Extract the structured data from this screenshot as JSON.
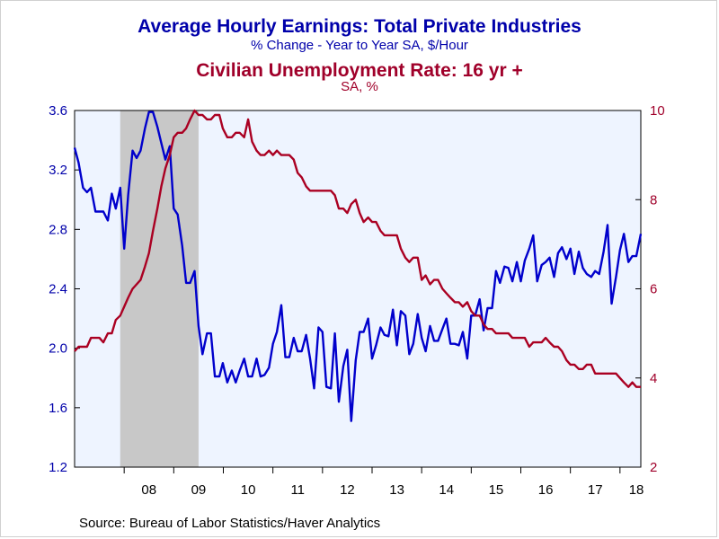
{
  "chart_data": {
    "type": "line",
    "title": "Average Hourly Earnings: Total Private Industries",
    "subtitle": "% Change - Year to Year     SA, $/Hour",
    "title2": "Civilian Unemployment Rate: 16 yr +",
    "subtitle2": "SA, %",
    "source": "Source:  Bureau of Labor Statistics/Haver Analytics",
    "x_unit": "year",
    "xlim": [
      2007.0,
      2018.42
    ],
    "x_tick_labels": [
      "08",
      "09",
      "10",
      "11",
      "12",
      "13",
      "14",
      "15",
      "16",
      "17",
      "18"
    ],
    "x_tick_positions": [
      2008.5,
      2009.5,
      2010.5,
      2011.5,
      2012.5,
      2013.5,
      2014.5,
      2015.5,
      2016.5,
      2017.5,
      2018.33
    ],
    "left_axis": {
      "ylim": [
        1.2,
        3.6
      ],
      "ticks": [
        "1.2",
        "1.6",
        "2.0",
        "2.4",
        "2.8",
        "3.2",
        "3.6"
      ],
      "color": "#0000aa"
    },
    "right_axis": {
      "ylim": [
        2,
        10
      ],
      "ticks": [
        "2",
        "4",
        "6",
        "8",
        "10"
      ],
      "color": "#a0002a"
    },
    "recession": {
      "start": 2007.92,
      "end": 2009.5,
      "color": "#c8c8c8"
    },
    "plot_background": "#eef4ff",
    "series": [
      {
        "axis": "left",
        "color": "#0000cc",
        "values": [
          [
            2007.0,
            3.35
          ],
          [
            2007.08,
            3.25
          ],
          [
            2007.17,
            3.08
          ],
          [
            2007.25,
            3.05
          ],
          [
            2007.33,
            3.08
          ],
          [
            2007.42,
            2.92
          ],
          [
            2007.5,
            2.92
          ],
          [
            2007.58,
            2.92
          ],
          [
            2007.67,
            2.86
          ],
          [
            2007.75,
            3.04
          ],
          [
            2007.83,
            2.94
          ],
          [
            2007.92,
            3.08
          ],
          [
            2008.0,
            2.67
          ],
          [
            2008.08,
            3.03
          ],
          [
            2008.17,
            3.33
          ],
          [
            2008.25,
            3.28
          ],
          [
            2008.33,
            3.33
          ],
          [
            2008.42,
            3.48
          ],
          [
            2008.5,
            3.59
          ],
          [
            2008.58,
            3.59
          ],
          [
            2008.67,
            3.49
          ],
          [
            2008.75,
            3.38
          ],
          [
            2008.83,
            3.27
          ],
          [
            2008.92,
            3.36
          ],
          [
            2009.0,
            2.94
          ],
          [
            2009.08,
            2.9
          ],
          [
            2009.17,
            2.69
          ],
          [
            2009.25,
            2.44
          ],
          [
            2009.33,
            2.44
          ],
          [
            2009.42,
            2.52
          ],
          [
            2009.5,
            2.15
          ],
          [
            2009.58,
            1.96
          ],
          [
            2009.67,
            2.1
          ],
          [
            2009.75,
            2.1
          ],
          [
            2009.83,
            1.81
          ],
          [
            2009.92,
            1.81
          ],
          [
            2009.99,
            1.9
          ],
          [
            2010.08,
            1.77
          ],
          [
            2010.17,
            1.85
          ],
          [
            2010.25,
            1.77
          ],
          [
            2010.33,
            1.85
          ],
          [
            2010.42,
            1.93
          ],
          [
            2010.5,
            1.81
          ],
          [
            2010.58,
            1.81
          ],
          [
            2010.67,
            1.93
          ],
          [
            2010.75,
            1.81
          ],
          [
            2010.83,
            1.82
          ],
          [
            2010.92,
            1.87
          ],
          [
            2011.0,
            2.03
          ],
          [
            2011.08,
            2.11
          ],
          [
            2011.17,
            2.29
          ],
          [
            2011.25,
            1.94
          ],
          [
            2011.33,
            1.94
          ],
          [
            2011.42,
            2.07
          ],
          [
            2011.5,
            1.98
          ],
          [
            2011.58,
            1.98
          ],
          [
            2011.67,
            2.09
          ],
          [
            2011.75,
            1.93
          ],
          [
            2011.83,
            1.73
          ],
          [
            2011.92,
            2.14
          ],
          [
            2012.0,
            2.11
          ],
          [
            2012.08,
            1.74
          ],
          [
            2012.17,
            1.73
          ],
          [
            2012.25,
            2.1
          ],
          [
            2012.33,
            1.64
          ],
          [
            2012.42,
            1.88
          ],
          [
            2012.5,
            1.99
          ],
          [
            2012.58,
            1.51
          ],
          [
            2012.67,
            1.92
          ],
          [
            2012.75,
            2.11
          ],
          [
            2012.83,
            2.11
          ],
          [
            2012.92,
            2.2
          ],
          [
            2013.0,
            1.93
          ],
          [
            2013.08,
            2.02
          ],
          [
            2013.17,
            2.14
          ],
          [
            2013.25,
            2.09
          ],
          [
            2013.33,
            2.08
          ],
          [
            2013.42,
            2.26
          ],
          [
            2013.5,
            2.02
          ],
          [
            2013.58,
            2.25
          ],
          [
            2013.67,
            2.22
          ],
          [
            2013.75,
            1.96
          ],
          [
            2013.83,
            2.03
          ],
          [
            2013.92,
            2.23
          ],
          [
            2014.0,
            2.07
          ],
          [
            2014.08,
            1.98
          ],
          [
            2014.17,
            2.15
          ],
          [
            2014.25,
            2.05
          ],
          [
            2014.33,
            2.05
          ],
          [
            2014.42,
            2.13
          ],
          [
            2014.5,
            2.2
          ],
          [
            2014.58,
            2.03
          ],
          [
            2014.67,
            2.03
          ],
          [
            2014.75,
            2.02
          ],
          [
            2014.83,
            2.11
          ],
          [
            2014.92,
            1.93
          ],
          [
            2015.0,
            2.22
          ],
          [
            2015.08,
            2.22
          ],
          [
            2015.17,
            2.33
          ],
          [
            2015.25,
            2.12
          ],
          [
            2015.33,
            2.27
          ],
          [
            2015.42,
            2.27
          ],
          [
            2015.5,
            2.52
          ],
          [
            2015.58,
            2.44
          ],
          [
            2015.67,
            2.55
          ],
          [
            2015.75,
            2.54
          ],
          [
            2015.83,
            2.45
          ],
          [
            2015.92,
            2.58
          ],
          [
            2016.0,
            2.45
          ],
          [
            2016.08,
            2.59
          ],
          [
            2016.17,
            2.67
          ],
          [
            2016.25,
            2.76
          ],
          [
            2016.33,
            2.45
          ],
          [
            2016.42,
            2.56
          ],
          [
            2016.5,
            2.58
          ],
          [
            2016.58,
            2.61
          ],
          [
            2016.67,
            2.48
          ],
          [
            2016.75,
            2.64
          ],
          [
            2016.83,
            2.68
          ],
          [
            2016.92,
            2.6
          ],
          [
            2017.0,
            2.67
          ],
          [
            2017.08,
            2.5
          ],
          [
            2017.17,
            2.65
          ],
          [
            2017.25,
            2.54
          ],
          [
            2017.33,
            2.5
          ],
          [
            2017.42,
            2.48
          ],
          [
            2017.5,
            2.52
          ],
          [
            2017.58,
            2.5
          ],
          [
            2017.67,
            2.65
          ],
          [
            2017.75,
            2.83
          ],
          [
            2017.83,
            2.3
          ],
          [
            2017.92,
            2.48
          ],
          [
            2018.0,
            2.66
          ],
          [
            2018.08,
            2.77
          ],
          [
            2018.17,
            2.58
          ],
          [
            2018.25,
            2.62
          ],
          [
            2018.33,
            2.62
          ],
          [
            2018.42,
            2.77
          ]
        ]
      },
      {
        "axis": "right",
        "color": "#aa0022",
        "values": [
          [
            2007.0,
            4.6
          ],
          [
            2007.08,
            4.7
          ],
          [
            2007.17,
            4.7
          ],
          [
            2007.25,
            4.7
          ],
          [
            2007.33,
            4.9
          ],
          [
            2007.42,
            4.9
          ],
          [
            2007.5,
            4.9
          ],
          [
            2007.58,
            4.8
          ],
          [
            2007.67,
            5.0
          ],
          [
            2007.75,
            5.0
          ],
          [
            2007.83,
            5.3
          ],
          [
            2007.92,
            5.4
          ],
          [
            2008.0,
            5.6
          ],
          [
            2008.08,
            5.8
          ],
          [
            2008.17,
            6.0
          ],
          [
            2008.25,
            6.1
          ],
          [
            2008.33,
            6.2
          ],
          [
            2008.42,
            6.5
          ],
          [
            2008.5,
            6.8
          ],
          [
            2008.58,
            7.3
          ],
          [
            2008.67,
            7.8
          ],
          [
            2008.75,
            8.3
          ],
          [
            2008.83,
            8.7
          ],
          [
            2008.92,
            9.0
          ],
          [
            2009.0,
            9.4
          ],
          [
            2009.08,
            9.5
          ],
          [
            2009.17,
            9.5
          ],
          [
            2009.25,
            9.6
          ],
          [
            2009.33,
            9.8
          ],
          [
            2009.42,
            10.0
          ],
          [
            2009.5,
            9.9
          ],
          [
            2009.58,
            9.9
          ],
          [
            2009.67,
            9.8
          ],
          [
            2009.75,
            9.8
          ],
          [
            2009.83,
            9.9
          ],
          [
            2009.92,
            9.9
          ],
          [
            2009.99,
            9.6
          ],
          [
            2010.08,
            9.4
          ],
          [
            2010.17,
            9.4
          ],
          [
            2010.25,
            9.5
          ],
          [
            2010.33,
            9.5
          ],
          [
            2010.42,
            9.4
          ],
          [
            2010.5,
            9.8
          ],
          [
            2010.58,
            9.3
          ],
          [
            2010.67,
            9.1
          ],
          [
            2010.75,
            9.0
          ],
          [
            2010.83,
            9.0
          ],
          [
            2010.92,
            9.1
          ],
          [
            2011.0,
            9.0
          ],
          [
            2011.08,
            9.1
          ],
          [
            2011.17,
            9.0
          ],
          [
            2011.25,
            9.0
          ],
          [
            2011.33,
            9.0
          ],
          [
            2011.42,
            8.9
          ],
          [
            2011.5,
            8.6
          ],
          [
            2011.58,
            8.5
          ],
          [
            2011.67,
            8.3
          ],
          [
            2011.75,
            8.2
          ],
          [
            2011.83,
            8.2
          ],
          [
            2011.92,
            8.2
          ],
          [
            2012.0,
            8.2
          ],
          [
            2012.08,
            8.2
          ],
          [
            2012.17,
            8.2
          ],
          [
            2012.25,
            8.1
          ],
          [
            2012.33,
            7.8
          ],
          [
            2012.42,
            7.8
          ],
          [
            2012.5,
            7.7
          ],
          [
            2012.58,
            7.9
          ],
          [
            2012.67,
            8.0
          ],
          [
            2012.75,
            7.7
          ],
          [
            2012.83,
            7.5
          ],
          [
            2012.92,
            7.6
          ],
          [
            2013.0,
            7.5
          ],
          [
            2013.08,
            7.5
          ],
          [
            2013.17,
            7.3
          ],
          [
            2013.25,
            7.2
          ],
          [
            2013.33,
            7.2
          ],
          [
            2013.42,
            7.2
          ],
          [
            2013.5,
            7.2
          ],
          [
            2013.58,
            6.9
          ],
          [
            2013.67,
            6.7
          ],
          [
            2013.75,
            6.6
          ],
          [
            2013.83,
            6.7
          ],
          [
            2013.92,
            6.7
          ],
          [
            2014.0,
            6.2
          ],
          [
            2014.08,
            6.3
          ],
          [
            2014.17,
            6.1
          ],
          [
            2014.25,
            6.2
          ],
          [
            2014.33,
            6.2
          ],
          [
            2014.42,
            6.0
          ],
          [
            2014.5,
            5.9
          ],
          [
            2014.58,
            5.8
          ],
          [
            2014.67,
            5.7
          ],
          [
            2014.75,
            5.7
          ],
          [
            2014.83,
            5.6
          ],
          [
            2014.92,
            5.7
          ],
          [
            2015.0,
            5.5
          ],
          [
            2015.08,
            5.4
          ],
          [
            2015.17,
            5.4
          ],
          [
            2015.25,
            5.2
          ],
          [
            2015.33,
            5.1
          ],
          [
            2015.42,
            5.1
          ],
          [
            2015.5,
            5.0
          ],
          [
            2015.58,
            5.0
          ],
          [
            2015.67,
            5.0
          ],
          [
            2015.75,
            5.0
          ],
          [
            2015.83,
            4.9
          ],
          [
            2015.92,
            4.9
          ],
          [
            2016.0,
            4.9
          ],
          [
            2016.08,
            4.9
          ],
          [
            2016.17,
            4.7
          ],
          [
            2016.25,
            4.8
          ],
          [
            2016.33,
            4.8
          ],
          [
            2016.42,
            4.8
          ],
          [
            2016.5,
            4.9
          ],
          [
            2016.58,
            4.8
          ],
          [
            2016.67,
            4.7
          ],
          [
            2016.75,
            4.7
          ],
          [
            2016.83,
            4.6
          ],
          [
            2016.92,
            4.4
          ],
          [
            2017.0,
            4.3
          ],
          [
            2017.08,
            4.3
          ],
          [
            2017.17,
            4.2
          ],
          [
            2017.25,
            4.2
          ],
          [
            2017.33,
            4.3
          ],
          [
            2017.42,
            4.3
          ],
          [
            2017.5,
            4.1
          ],
          [
            2017.58,
            4.1
          ],
          [
            2017.67,
            4.1
          ],
          [
            2017.75,
            4.1
          ],
          [
            2017.83,
            4.1
          ],
          [
            2017.92,
            4.1
          ],
          [
            2018.0,
            4.0
          ],
          [
            2018.08,
            3.9
          ],
          [
            2018.17,
            3.8
          ],
          [
            2018.25,
            3.9
          ],
          [
            2018.33,
            3.8
          ],
          [
            2018.42,
            3.8
          ]
        ]
      }
    ]
  }
}
